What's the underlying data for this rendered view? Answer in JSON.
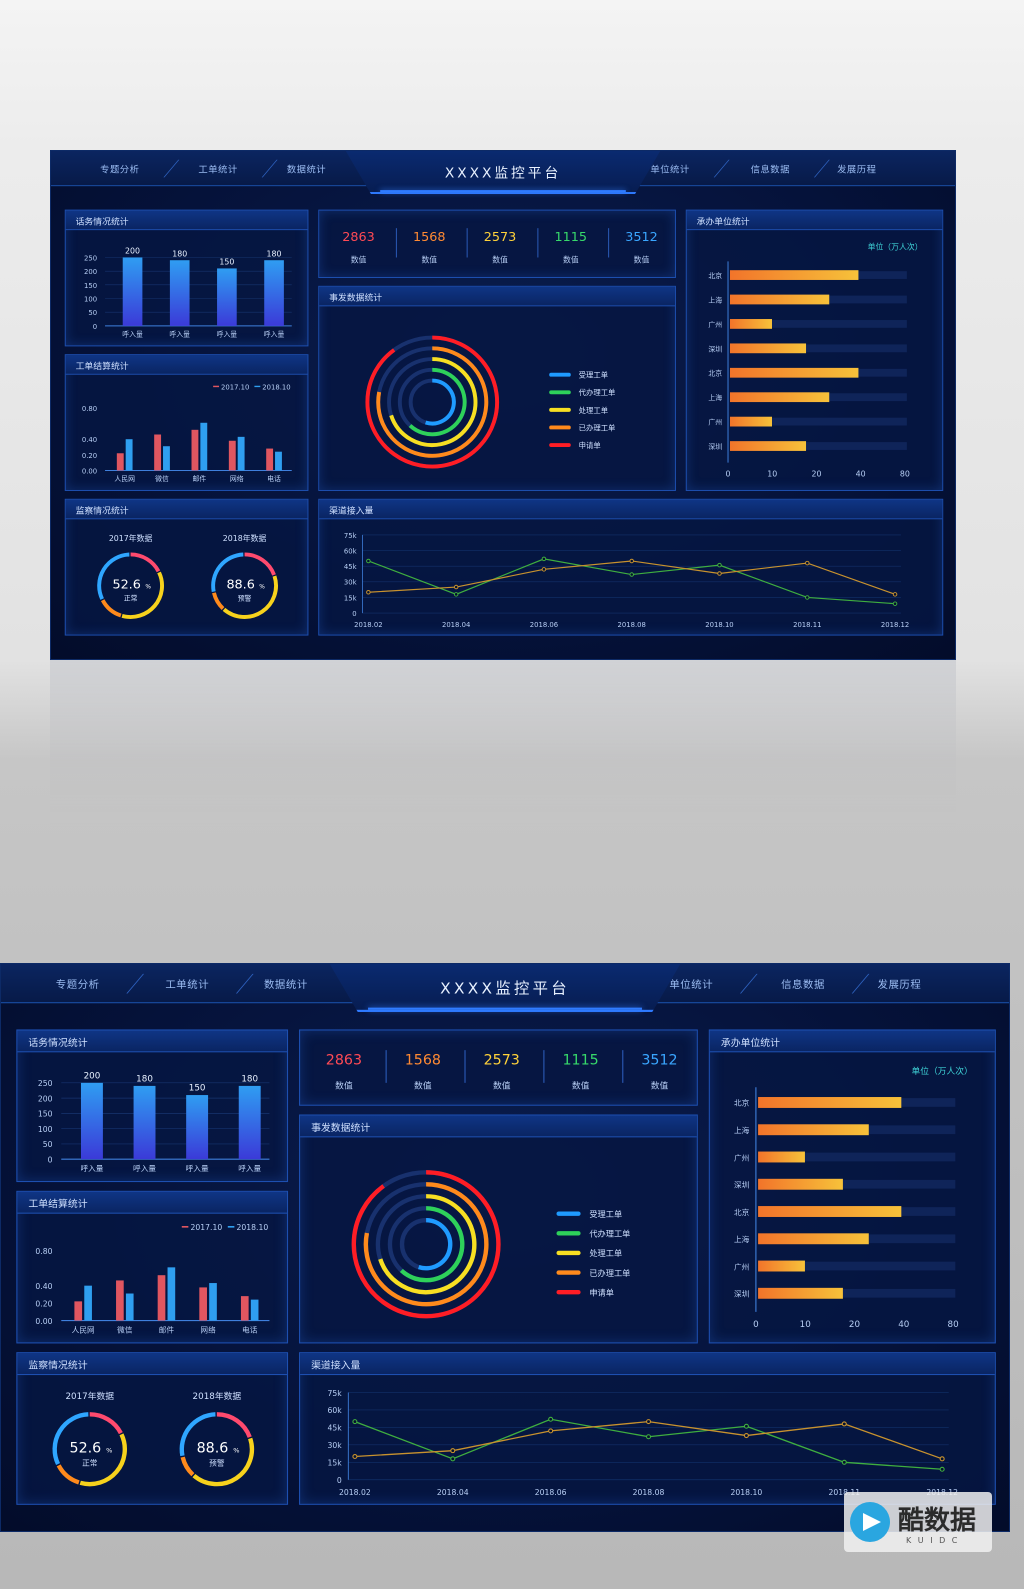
{
  "nav": {
    "left": [
      "专题分析",
      "工单统计",
      "数据统计"
    ],
    "title": "XXXX监控平台",
    "right": [
      "单位统计",
      "信息数据",
      "发展历程"
    ]
  },
  "panels": {
    "p1": "话务情况统计",
    "p2": "工单结算统计",
    "p3": "监察情况统计",
    "p4": "事发数据统计",
    "p5": "承办单位统计",
    "p6": "渠道接入量"
  },
  "stats": [
    {
      "value": "2863",
      "label": "数值",
      "color": "#ff4a55"
    },
    {
      "value": "1568",
      "label": "数值",
      "color": "#ff8a33"
    },
    {
      "value": "2573",
      "label": "数值",
      "color": "#ffd23a"
    },
    {
      "value": "1115",
      "label": "数值",
      "color": "#37d96b"
    },
    {
      "value": "3512",
      "label": "数值",
      "color": "#3aa6ff"
    }
  ],
  "ring_legend": [
    {
      "label": "受理工单",
      "color": "#1f9bff"
    },
    {
      "label": "代办理工单",
      "color": "#2ed15a"
    },
    {
      "label": "处理工单",
      "color": "#f7df22"
    },
    {
      "label": "已办理工单",
      "color": "#ff8a1c"
    },
    {
      "label": "申请单",
      "color": "#ff1d25"
    }
  ],
  "gauges": [
    {
      "title": "2017年数据",
      "value": "52.6",
      "unit": "%",
      "label": "正常"
    },
    {
      "title": "2018年数据",
      "value": "88.6",
      "unit": "%",
      "label": "预警"
    }
  ],
  "hbar_unit": "单位（万人次）",
  "watermark": {
    "text": "酷数据",
    "sub": "K U I D C"
  },
  "chart_data": [
    {
      "type": "bar",
      "title": "话务情况统计",
      "categories": [
        "呼入量",
        "呼入量",
        "呼入量",
        "呼入量"
      ],
      "values": [
        200,
        180,
        150,
        180
      ],
      "data_labels": [
        "200",
        "180",
        "150",
        "180"
      ],
      "yticks": [
        "250",
        "200",
        "150",
        "100",
        "50",
        "0"
      ],
      "ylim": [
        0,
        250
      ]
    },
    {
      "type": "bar",
      "title": "工单结算统计",
      "categories": [
        "人民网",
        "微信",
        "邮件",
        "网络",
        "电话"
      ],
      "series": [
        {
          "name": "2017.10",
          "values": [
            0.22,
            0.46,
            0.52,
            0.38,
            0.28
          ],
          "color": "#e05660"
        },
        {
          "name": "2018.10",
          "values": [
            0.4,
            0.31,
            0.61,
            0.43,
            0.24
          ],
          "color": "#2f9ff0"
        }
      ],
      "yticks": [
        "0.80",
        "0.40",
        "0.20",
        "0.00"
      ],
      "ylim": [
        0,
        0.8
      ],
      "legend": "top-right"
    },
    {
      "type": "bar",
      "title": "承办单位统计",
      "orientation": "horizontal",
      "categories": [
        "北京",
        "上海",
        "广州",
        "深圳",
        "北京",
        "上海",
        "广州",
        "深圳"
      ],
      "values": [
        62,
        38,
        10,
        24,
        62,
        38,
        10,
        24
      ],
      "xticks": [
        "0",
        "10",
        "20",
        "40",
        "80"
      ],
      "xlim": [
        0,
        80
      ]
    },
    {
      "type": "line",
      "title": "渠道接入量",
      "x": [
        "2018.02",
        "2018.04",
        "2018.06",
        "2018.08",
        "2018.10",
        "2018.11",
        "2018.12"
      ],
      "yticks": [
        "75k",
        "60k",
        "45k",
        "30k",
        "15k",
        "0"
      ],
      "ylim": [
        0,
        75
      ],
      "series": [
        {
          "name": "series-green",
          "values": [
            50,
            18,
            52,
            37,
            46,
            15,
            9
          ],
          "color": "#3fae3f"
        },
        {
          "name": "series-orange",
          "values": [
            20,
            25,
            42,
            50,
            38,
            48,
            18
          ],
          "color": "#c8922e"
        }
      ],
      "grid": true
    },
    {
      "type": "pie",
      "title": "事发数据统计",
      "rings": [
        {
          "label": "受理工单",
          "fraction": 0.55
        },
        {
          "label": "代办理工单",
          "fraction": 0.62
        },
        {
          "label": "处理工单",
          "fraction": 0.7
        },
        {
          "label": "已办理工单",
          "fraction": 0.78
        },
        {
          "label": "申请单",
          "fraction": 0.9
        }
      ]
    }
  ]
}
